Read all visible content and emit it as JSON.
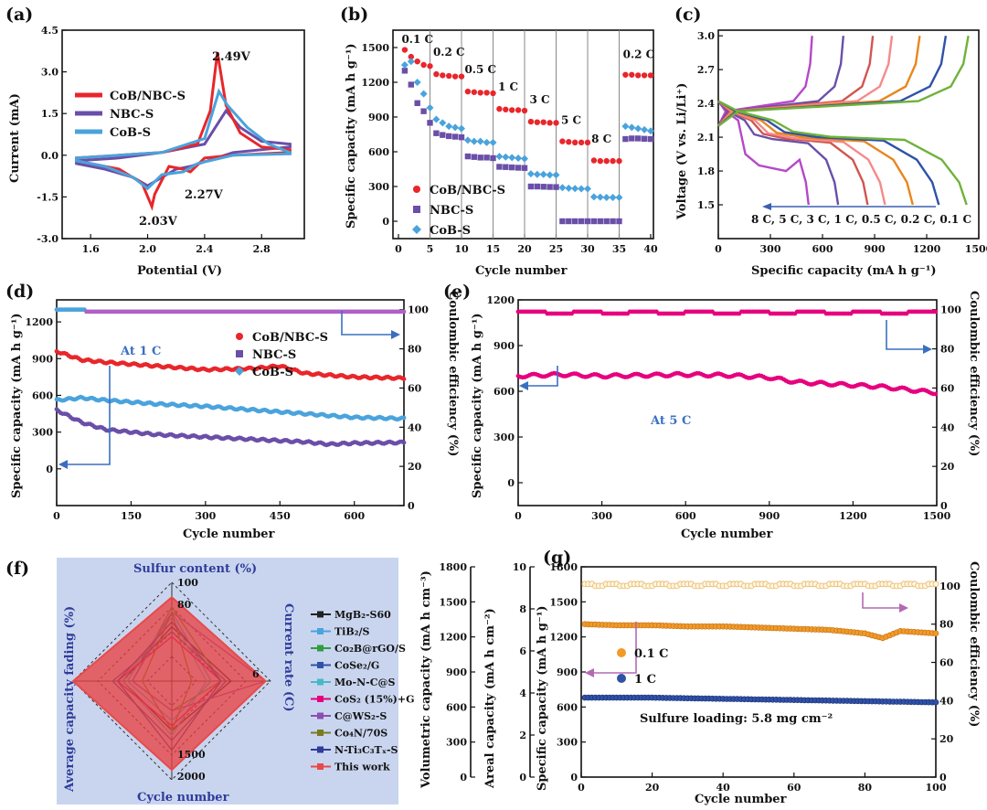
{
  "panels": {
    "a": {
      "label": "(a)",
      "xlabel": "Potential (V)",
      "ylabel": "Current (mA)",
      "ann": [
        "2.49V",
        "2.27V",
        "2.03V"
      ]
    },
    "b": {
      "label": "(b)",
      "xlabel": "Cycle number",
      "ylabel": "Specific capacity (mA h g⁻¹)"
    },
    "c": {
      "label": "(c)",
      "xlabel": "Specific capacity (mA h g⁻¹)",
      "ylabel": "Voltage (V vs. Li/Li⁺)",
      "rate_note": "8 C, 5 C, 3 C, 1 C, 0.5 C, 0.2 C, 0.1 C"
    },
    "d": {
      "label": "(d)",
      "xlabel": "Cycle number",
      "ylabel": "Specific capacity (mA h g⁻¹)",
      "y2label": "Coulombic efficiency (%)",
      "ann": "At 1 C"
    },
    "e": {
      "label": "(e)",
      "xlabel": "Cycle number",
      "ylabel": "Specific capacity  (mA h g⁻¹)",
      "y2label": "Coulombic efficiency (%)",
      "ann": "At 5 C"
    },
    "f": {
      "label": "(f)",
      "axes": [
        "Sulfur content (%)",
        "Current rate (C)",
        "Cycle number",
        "Average capacity fading (%)"
      ]
    },
    "g": {
      "label": "(g)",
      "xlabel": "Cycle number",
      "ylabel": "Specific capacity (mA h g⁻¹)",
      "y2label": "Coulombic efficiency (%)",
      "ylabel_vol": "Volumetric capacity (mA h cm⁻³)",
      "ylabel_areal": "Areal capacity (mA h cm⁻²)",
      "ann": "Sulfure loading: 5.8 mg cm⁻²"
    }
  },
  "colors": {
    "red": "#e8262b",
    "purple": "#6a4fa8",
    "blue": "#4aa3dc",
    "orange": "#f29a26",
    "navy": "#2f52a8",
    "pink": "#e6007e"
  },
  "chart_data": [
    {
      "id": "a",
      "type": "line",
      "xlabel": "Potential (V)",
      "ylabel": "Current (mA)",
      "xlim": [
        1.4,
        3.1
      ],
      "ylim": [
        -3.0,
        4.5
      ],
      "xticks": [
        1.6,
        2.0,
        2.4,
        2.8
      ],
      "yticks": [
        -3.0,
        -1.5,
        0.0,
        1.5,
        3.0,
        4.5
      ],
      "series": [
        {
          "name": "CoB/NBC-S",
          "peaks_V": [
            2.03,
            2.27,
            2.49
          ],
          "peak_current_mA": 3.7
        },
        {
          "name": "NBC-S",
          "peak_current_mA": 1.6
        },
        {
          "name": "CoB-S",
          "peak_current_mA": 2.3
        }
      ]
    },
    {
      "id": "b",
      "type": "scatter",
      "xlabel": "Cycle number",
      "ylabel": "Specific capacity (mA h g⁻¹)",
      "xlim": [
        0,
        40
      ],
      "ylim": [
        -150,
        1650
      ],
      "xticks": [
        0,
        5,
        10,
        15,
        20,
        25,
        30,
        35,
        40
      ],
      "yticks": [
        0,
        300,
        600,
        900,
        1200,
        1500
      ],
      "rates": [
        "0.1 C",
        "0.2 C",
        "0.5 C",
        "1 C",
        "3 C",
        "5 C",
        "8 C",
        "0.2 C"
      ],
      "series": [
        {
          "name": "CoB/NBC-S",
          "values": [
            1480,
            1420,
            1380,
            1350,
            1340,
            1270,
            1260,
            1255,
            1250,
            1250,
            1120,
            1115,
            1110,
            1110,
            1105,
            970,
            965,
            960,
            960,
            955,
            860,
            855,
            855,
            850,
            850,
            690,
            685,
            680,
            680,
            680,
            525,
            520,
            520,
            520,
            520,
            1265,
            1265,
            1260,
            1260,
            1260
          ]
        },
        {
          "name": "NBC-S",
          "values": [
            1300,
            1180,
            1020,
            950,
            850,
            760,
            745,
            735,
            730,
            725,
            560,
            555,
            550,
            550,
            545,
            470,
            468,
            465,
            462,
            460,
            300,
            300,
            298,
            296,
            295,
            0,
            0,
            0,
            0,
            0,
            0,
            0,
            0,
            0,
            0,
            710,
            715,
            715,
            712,
            710
          ]
        },
        {
          "name": "CoB-S",
          "values": [
            1350,
            1380,
            1200,
            1100,
            980,
            880,
            850,
            820,
            810,
            800,
            700,
            690,
            690,
            680,
            680,
            560,
            555,
            550,
            545,
            540,
            410,
            405,
            405,
            400,
            400,
            290,
            285,
            282,
            280,
            280,
            210,
            208,
            205,
            205,
            205,
            820,
            810,
            800,
            790,
            780
          ]
        }
      ]
    },
    {
      "id": "c",
      "type": "line",
      "xlabel": "Specific capacity (mA h g⁻¹)",
      "ylabel": "Voltage (V vs. Li/Li⁺)",
      "xlim": [
        0,
        1500
      ],
      "ylim": [
        1.2,
        3.05
      ],
      "xticks": [
        0,
        300,
        600,
        900,
        1200,
        1500
      ],
      "yticks": [
        1.5,
        1.8,
        2.1,
        2.4,
        2.7,
        3.0
      ],
      "series": [
        {
          "name": "8 C",
          "discharge_end": 520,
          "charge_end": 540
        },
        {
          "name": "5 C",
          "discharge_end": 690,
          "charge_end": 720
        },
        {
          "name": "3 C",
          "discharge_end": 860,
          "charge_end": 890
        },
        {
          "name": "1 C",
          "discharge_end": 960,
          "charge_end": 1000
        },
        {
          "name": "0.5 C",
          "discharge_end": 1120,
          "charge_end": 1160
        },
        {
          "name": "0.2 C",
          "discharge_end": 1270,
          "charge_end": 1310
        },
        {
          "name": "0.1 C",
          "discharge_end": 1430,
          "charge_end": 1440
        }
      ]
    },
    {
      "id": "d",
      "type": "scatter",
      "xlabel": "Cycle number",
      "ylabel": "Specific capacity (mA h g⁻¹)",
      "y2label": "Coulombic efficiency (%)",
      "xlim": [
        0,
        700
      ],
      "ylim": [
        -300,
        1380
      ],
      "y2lim": [
        0,
        105
      ],
      "xticks": [
        0,
        150,
        300,
        450,
        600
      ],
      "yticks": [
        0,
        300,
        600,
        900,
        1200
      ],
      "y2ticks": [
        0,
        20,
        40,
        60,
        80,
        100
      ],
      "series": [
        {
          "name": "CoB/NBC-S",
          "x": [
            0,
            50,
            100,
            200,
            300,
            400,
            450,
            500,
            600,
            700
          ],
          "values": [
            960,
            890,
            870,
            840,
            810,
            820,
            840,
            780,
            750,
            740
          ]
        },
        {
          "name": "NBC-S",
          "x": [
            0,
            50,
            100,
            200,
            300,
            400,
            500,
            550,
            600,
            700
          ],
          "values": [
            480,
            380,
            320,
            280,
            260,
            240,
            220,
            200,
            210,
            215
          ]
        },
        {
          "name": "CoB-S",
          "x": [
            0,
            50,
            100,
            200,
            300,
            400,
            500,
            600,
            700
          ],
          "values": [
            560,
            580,
            560,
            530,
            510,
            480,
            450,
            420,
            410
          ]
        },
        {
          "name": "Coulombic efficiency",
          "values": [
            100,
            99
          ]
        }
      ]
    },
    {
      "id": "e",
      "type": "scatter",
      "xlabel": "Cycle number",
      "ylabel": "Specific capacity  (mA h g⁻¹)",
      "y2label": "Coulombic efficiency (%)",
      "xlim": [
        0,
        1500
      ],
      "ylim": [
        -150,
        1200
      ],
      "y2lim": [
        0,
        105
      ],
      "xticks": [
        0,
        300,
        600,
        900,
        1200,
        1500
      ],
      "yticks": [
        0,
        300,
        600,
        900,
        1200
      ],
      "y2ticks": [
        0,
        20,
        40,
        60,
        80,
        100
      ],
      "series": [
        {
          "name": "Capacity",
          "x": [
            0,
            150,
            300,
            450,
            600,
            750,
            900,
            1000,
            1100,
            1200,
            1300,
            1400,
            1500
          ],
          "values": [
            700,
            710,
            700,
            705,
            710,
            705,
            690,
            660,
            650,
            640,
            630,
            610,
            590
          ]
        },
        {
          "name": "Coulombic efficiency",
          "values": [
            99,
            98
          ]
        }
      ]
    },
    {
      "id": "f",
      "type": "radar",
      "axes": [
        "Sulfur content (%)",
        "Current rate (C)",
        "Cycle number",
        "Average capacity fading (%)"
      ],
      "series": [
        "MgB₂-S60",
        "TiB₂/S",
        "Co₂B@rGO/S",
        "CoSe₂/G",
        "Mo-N-C@S",
        "CoS₂ (15%)+G",
        "C@WS₂-S",
        "Co₄N/70S",
        "N-Ti₃C₃Tₓ-S",
        "This work"
      ],
      "tick_labels": [
        "100",
        "80",
        "1500",
        "2000",
        "6"
      ]
    },
    {
      "id": "g",
      "type": "scatter",
      "xlabel": "Cycle number",
      "ylabel": "Specific capacity (mA h g⁻¹)",
      "y2label": "Coulombic efficiency (%)",
      "xlim": [
        0,
        100
      ],
      "ylim": [
        0,
        1800
      ],
      "y2lim": [
        0,
        110
      ],
      "xticks": [
        0,
        20,
        40,
        60,
        80,
        100
      ],
      "yticks": [
        0,
        300,
        600,
        900,
        1200,
        1500,
        1800
      ],
      "areal_ticks": [
        0,
        2,
        4,
        6,
        8,
        10
      ],
      "volumetric_ticks": [
        0,
        300,
        600,
        900,
        1200,
        1500,
        1800
      ],
      "y2ticks": [
        0,
        20,
        40,
        60,
        80,
        100
      ],
      "series": [
        {
          "name": "0.1 C",
          "x": [
            0,
            10,
            20,
            30,
            40,
            50,
            60,
            70,
            80,
            85,
            90,
            100
          ],
          "values": [
            1310,
            1300,
            1300,
            1290,
            1290,
            1280,
            1270,
            1260,
            1230,
            1190,
            1250,
            1230
          ]
        },
        {
          "name": "1 C",
          "x": [
            0,
            20,
            40,
            60,
            80,
            100
          ],
          "values": [
            680,
            680,
            670,
            660,
            650,
            640
          ]
        },
        {
          "name": "Coulombic efficiency",
          "values": [
            101,
            100
          ]
        }
      ]
    }
  ],
  "legends": {
    "a": [
      "CoB/NBC-S",
      "NBC-S",
      "CoB-S"
    ],
    "b": [
      "CoB/NBC-S",
      "NBC-S",
      "CoB-S"
    ],
    "d": [
      "CoB/NBC-S",
      "NBC-S",
      "CoB-S"
    ],
    "g": [
      "0.1 C",
      "1 C"
    ]
  }
}
